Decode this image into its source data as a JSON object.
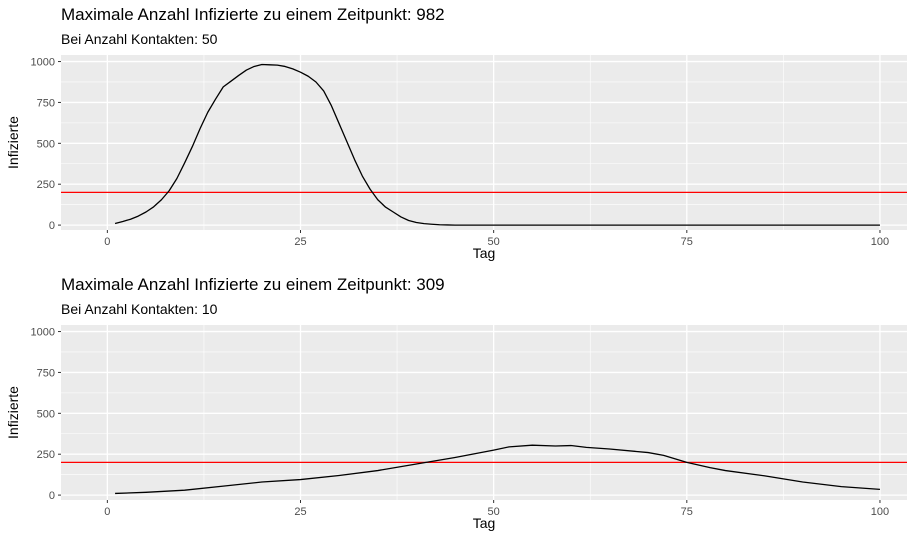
{
  "chart_data": [
    {
      "type": "line",
      "title": "Maximale Anzahl Infizierte zu einem Zeitpunkt: 982",
      "subtitle": "Bei Anzahl Kontakten: 50",
      "xlabel": "Tag",
      "ylabel": "Infizierte",
      "xlim": [
        -6,
        103.5
      ],
      "ylim": [
        -30,
        1040
      ],
      "xticks": [
        0,
        25,
        50,
        75,
        100
      ],
      "yticks": [
        0,
        250,
        500,
        750,
        1000
      ],
      "grid": true,
      "threshold": 200,
      "series": [
        {
          "x": [
            1,
            2,
            3,
            4,
            5,
            6,
            7,
            8,
            9,
            10,
            11,
            12,
            13,
            14,
            15,
            16,
            17,
            18,
            19,
            20,
            21,
            22,
            23,
            24,
            25,
            26,
            27,
            28,
            29,
            30,
            31,
            32,
            33,
            34,
            35,
            36,
            37,
            38,
            39,
            40,
            41,
            42,
            43,
            44,
            45,
            50,
            60,
            70,
            80,
            90,
            100
          ],
          "y": [
            10,
            22,
            36,
            55,
            80,
            112,
            155,
            210,
            285,
            380,
            480,
            590,
            690,
            770,
            845,
            880,
            915,
            948,
            970,
            982,
            980,
            978,
            970,
            955,
            935,
            910,
            875,
            820,
            730,
            620,
            510,
            400,
            300,
            220,
            155,
            110,
            80,
            50,
            28,
            16,
            9,
            5,
            2,
            1,
            0,
            0,
            0,
            0,
            0,
            0,
            0
          ]
        }
      ],
      "reference_line": {
        "y": 200
      }
    },
    {
      "type": "line",
      "title": "Maximale Anzahl Infizierte zu einem Zeitpunkt: 309",
      "subtitle": "Bei Anzahl Kontakten: 10",
      "xlabel": "Tag",
      "ylabel": "Infizierte",
      "xlim": [
        -6,
        103.5
      ],
      "ylim": [
        -30,
        1040
      ],
      "xticks": [
        0,
        25,
        50,
        75,
        100
      ],
      "yticks": [
        0,
        250,
        500,
        750,
        1000
      ],
      "grid": true,
      "threshold": 200,
      "series": [
        {
          "x": [
            1,
            5,
            10,
            15,
            20,
            25,
            30,
            35,
            40,
            45,
            50,
            52,
            55,
            58,
            60,
            62,
            65,
            70,
            72,
            75,
            78,
            80,
            85,
            90,
            95,
            100
          ],
          "y": [
            10,
            17,
            30,
            55,
            80,
            95,
            120,
            150,
            190,
            230,
            275,
            295,
            305,
            300,
            303,
            292,
            282,
            260,
            243,
            200,
            168,
            150,
            118,
            80,
            52,
            35
          ]
        }
      ],
      "reference_line": {
        "y": 200
      }
    }
  ],
  "colors": {
    "panel": "#ebebeb",
    "grid_major": "#ffffff",
    "line": "#000000",
    "reference": "#ff0000",
    "text": "#000000",
    "tick_text": "#4d4d4d",
    "tick_mark": "#333333"
  }
}
